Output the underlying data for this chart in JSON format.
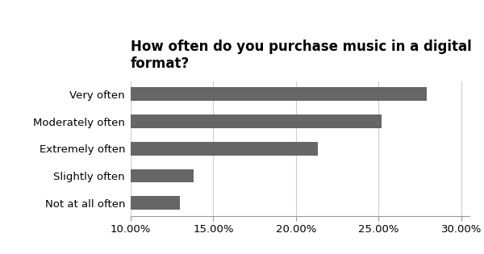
{
  "title": "How often do you purchase music in a digital\nformat?",
  "categories": [
    "Not at all often",
    "Slightly often",
    "Extremely often",
    "Moderately often",
    "Very often"
  ],
  "values": [
    0.13,
    0.138,
    0.213,
    0.252,
    0.279
  ],
  "bar_color": "#666666",
  "xlim": [
    0.1,
    0.305
  ],
  "xticks": [
    0.1,
    0.15,
    0.2,
    0.25,
    0.3
  ],
  "xtick_labels": [
    "10.00%",
    "15.00%",
    "20.00%",
    "25.00%",
    "30.00%"
  ],
  "background_color": "#ffffff",
  "title_fontsize": 12,
  "tick_fontsize": 9.5,
  "bar_height": 0.5
}
